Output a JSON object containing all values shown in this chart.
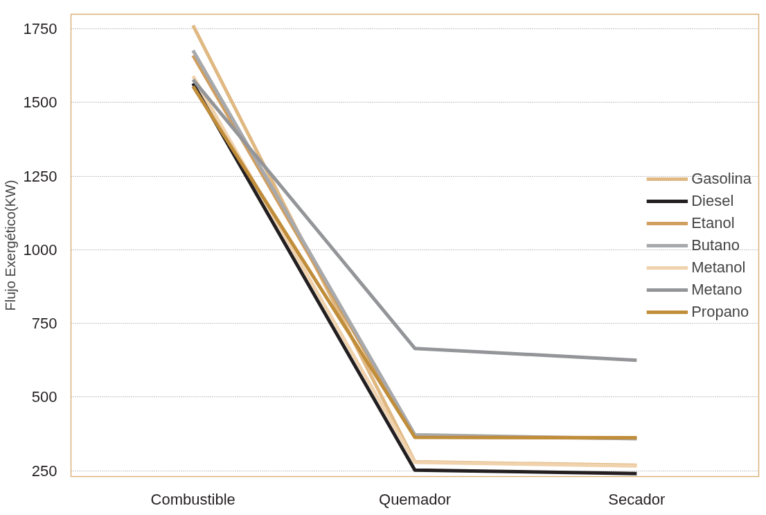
{
  "chart_data": {
    "type": "line",
    "ylabel": "Flujo Exergético(KW)",
    "categories": [
      "Combustible",
      "Quemador",
      "Secador"
    ],
    "series": [
      {
        "name": "Gasolina",
        "color": "#e0b882",
        "values": [
          1762,
          280,
          268
        ]
      },
      {
        "name": "Diesel",
        "color": "#231f20",
        "values": [
          1565,
          252,
          240
        ]
      },
      {
        "name": "Etanol",
        "color": "#d09e5e",
        "values": [
          1660,
          365,
          360
        ]
      },
      {
        "name": "Butano",
        "color": "#a7a9ac",
        "values": [
          1677,
          372,
          358
        ]
      },
      {
        "name": "Metanol",
        "color": "#f0d2ad",
        "values": [
          1590,
          278,
          266
        ]
      },
      {
        "name": "Metano",
        "color": "#939598",
        "values": [
          1578,
          665,
          625
        ]
      },
      {
        "name": "Propano",
        "color": "#c08d3a",
        "values": [
          1555,
          363,
          362
        ]
      }
    ],
    "ylim": [
      230,
      1800
    ],
    "yticks": [
      250,
      500,
      750,
      1000,
      1250,
      1500,
      1750
    ],
    "grid": "y",
    "legend": "right",
    "marker": "none",
    "line_style": "solid"
  }
}
